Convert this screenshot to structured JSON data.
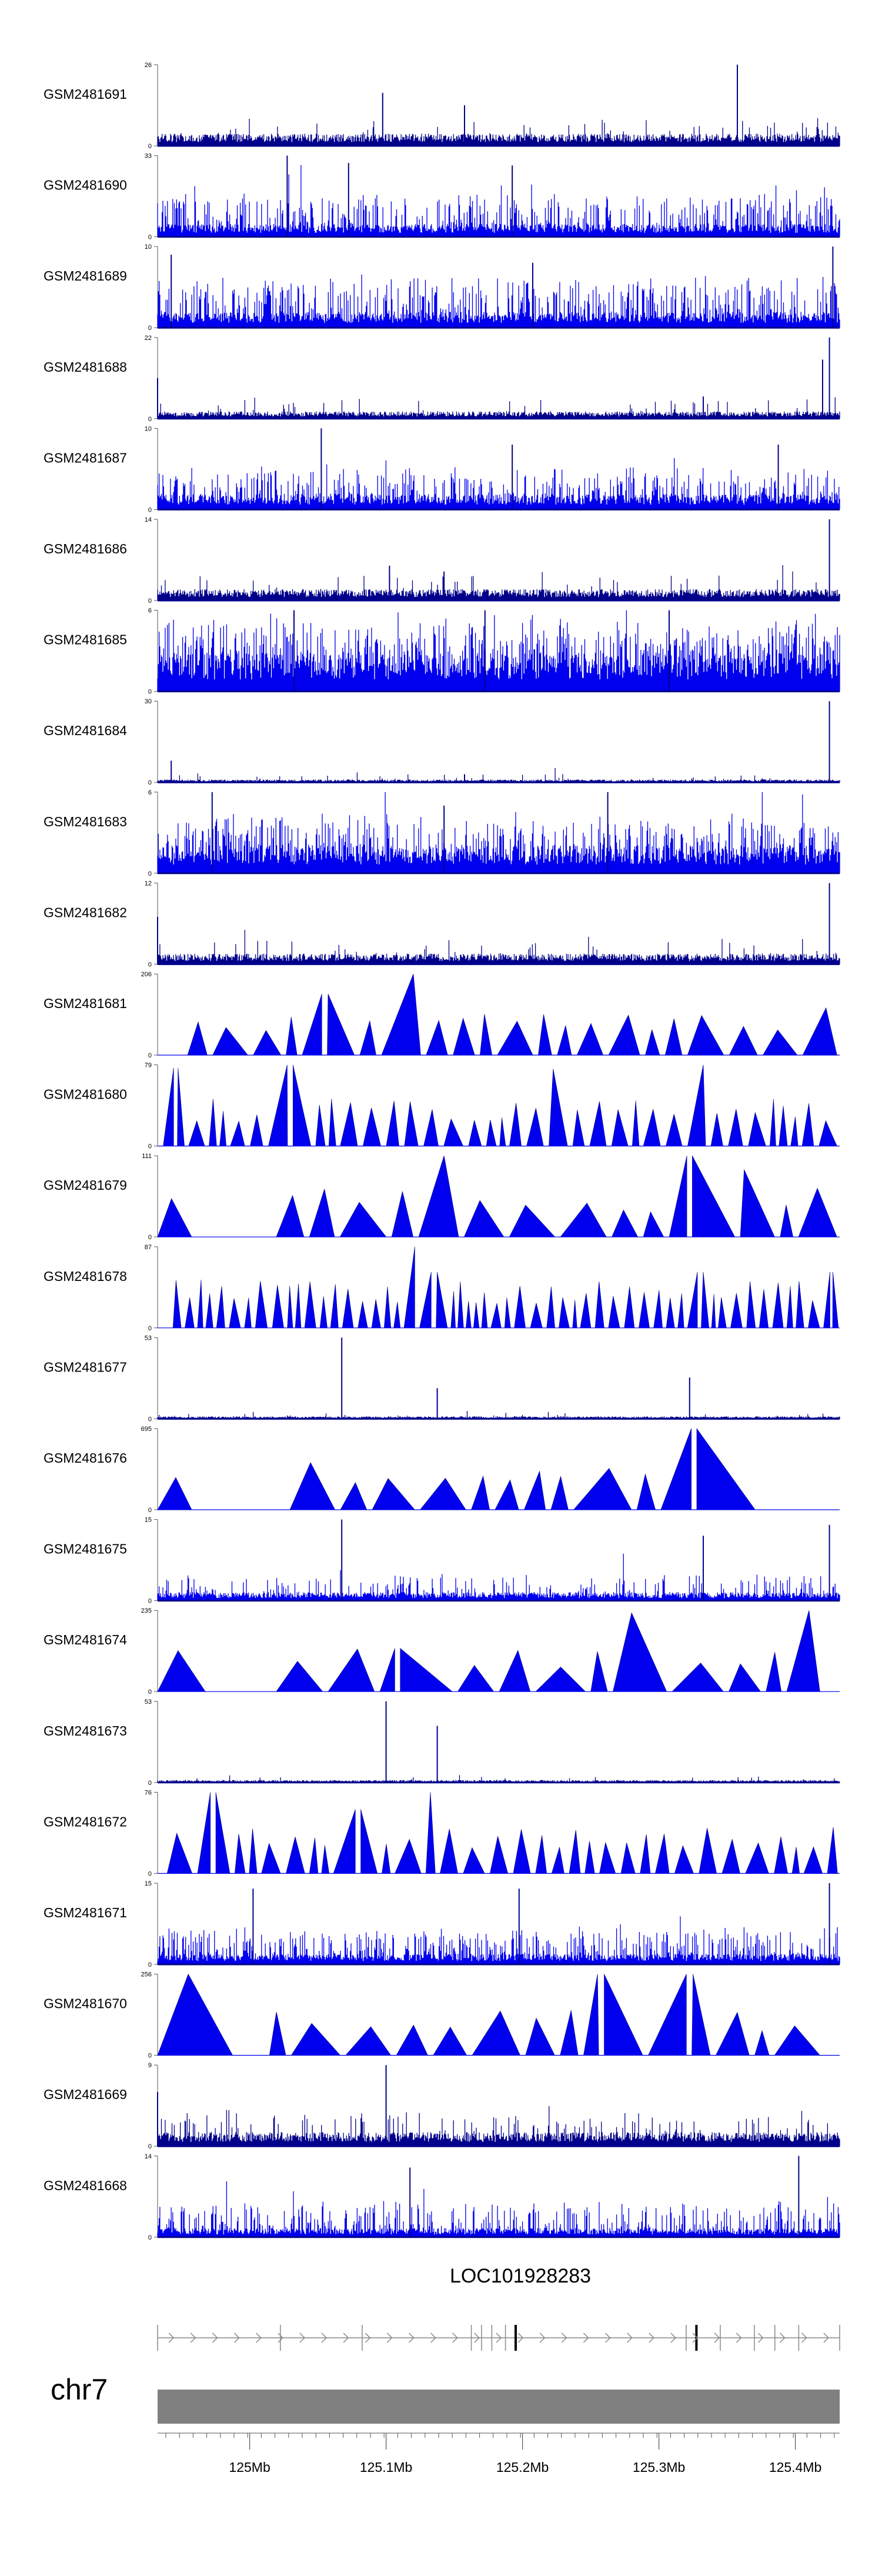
{
  "chart_data": {
    "type": "area",
    "title": "",
    "tracks": [
      {
        "name": "GSM2481691",
        "ylim": [
          0,
          26
        ],
        "style": "dense",
        "baseline": 3,
        "noise": 5,
        "spike_rate": 0.06,
        "peaks": [
          {
            "x": 0.85,
            "y": 26
          },
          {
            "x": 0.33,
            "y": 17
          },
          {
            "x": 0.45,
            "y": 13
          }
        ]
      },
      {
        "name": "GSM2481690",
        "ylim": [
          0,
          33
        ],
        "style": "comb",
        "baseline": 4,
        "noise": 13,
        "spike_rate": 0.35,
        "peaks": [
          {
            "x": 0.19,
            "y": 33
          },
          {
            "x": 0.28,
            "y": 30
          },
          {
            "x": 0.52,
            "y": 29
          }
        ]
      },
      {
        "name": "GSM2481689",
        "ylim": [
          0,
          10
        ],
        "style": "comb",
        "baseline": 1.5,
        "noise": 4.5,
        "spike_rate": 0.4,
        "peaks": [
          {
            "x": 0.99,
            "y": 10
          },
          {
            "x": 0.02,
            "y": 9
          },
          {
            "x": 0.55,
            "y": 8
          }
        ]
      },
      {
        "name": "GSM2481688",
        "ylim": [
          0,
          22
        ],
        "style": "dense",
        "baseline": 1.5,
        "noise": 3.5,
        "spike_rate": 0.05,
        "peaks": [
          {
            "x": 0.985,
            "y": 22
          },
          {
            "x": 0.975,
            "y": 16
          },
          {
            "x": 0.0,
            "y": 11
          },
          {
            "x": 0.8,
            "y": 6
          }
        ]
      },
      {
        "name": "GSM2481687",
        "ylim": [
          0,
          10
        ],
        "style": "comb",
        "baseline": 1.5,
        "noise": 3.5,
        "spike_rate": 0.35,
        "peaks": [
          {
            "x": 0.24,
            "y": 10
          },
          {
            "x": 0.52,
            "y": 8
          },
          {
            "x": 0.91,
            "y": 8
          }
        ]
      },
      {
        "name": "GSM2481686",
        "ylim": [
          0,
          14
        ],
        "style": "dense",
        "baseline": 1.5,
        "noise": 3,
        "spike_rate": 0.05,
        "peaks": [
          {
            "x": 0.985,
            "y": 14
          },
          {
            "x": 0.34,
            "y": 6
          },
          {
            "x": 0.42,
            "y": 5
          }
        ]
      },
      {
        "name": "GSM2481685",
        "ylim": [
          0,
          6
        ],
        "style": "comb",
        "baseline": 2.2,
        "noise": 2.8,
        "spike_rate": 0.5,
        "peaks": [
          {
            "x": 0.2,
            "y": 6
          },
          {
            "x": 0.48,
            "y": 6
          },
          {
            "x": 0.75,
            "y": 6
          }
        ]
      },
      {
        "name": "GSM2481684",
        "ylim": [
          0,
          30
        ],
        "style": "dense",
        "baseline": 0.8,
        "noise": 2.5,
        "spike_rate": 0.03,
        "peaks": [
          {
            "x": 0.985,
            "y": 30
          },
          {
            "x": 0.02,
            "y": 8
          },
          {
            "x": 0.45,
            "y": 3
          }
        ]
      },
      {
        "name": "GSM2481683",
        "ylim": [
          0,
          6
        ],
        "style": "comb",
        "baseline": 1.6,
        "noise": 2.5,
        "spike_rate": 0.4,
        "peaks": [
          {
            "x": 0.08,
            "y": 6
          },
          {
            "x": 0.66,
            "y": 6
          },
          {
            "x": 0.42,
            "y": 5
          }
        ]
      },
      {
        "name": "GSM2481682",
        "ylim": [
          0,
          12
        ],
        "style": "dense",
        "baseline": 1.2,
        "noise": 2.5,
        "spike_rate": 0.05,
        "peaks": [
          {
            "x": 0.985,
            "y": 12
          },
          {
            "x": 0.0,
            "y": 7
          }
        ]
      },
      {
        "name": "GSM2481681",
        "ylim": [
          0,
          206
        ],
        "style": "triangles",
        "count": 22,
        "gap": [
          0.0,
          0.04
        ],
        "peaks": [
          {
            "x": 0.375,
            "y": 206
          },
          {
            "x": 0.25,
            "y": 155
          },
          {
            "x": 0.98,
            "y": 120
          }
        ]
      },
      {
        "name": "GSM2481680",
        "ylim": [
          0,
          79
        ],
        "style": "triangles",
        "count": 38,
        "gap": [
          0.0,
          0.005
        ],
        "peaks": [
          {
            "x": 0.19,
            "y": 79
          },
          {
            "x": 0.03,
            "y": 76
          },
          {
            "x": 0.58,
            "y": 75
          },
          {
            "x": 0.8,
            "y": 79
          }
        ]
      },
      {
        "name": "GSM2481679",
        "ylim": [
          0,
          111
        ],
        "style": "triangles",
        "count": 15,
        "gap": [
          0.05,
          0.17
        ],
        "peaks": [
          {
            "x": 0.42,
            "y": 111
          },
          {
            "x": 0.78,
            "y": 111
          },
          {
            "x": 0.86,
            "y": 92
          }
        ]
      },
      {
        "name": "GSM2481678",
        "ylim": [
          0,
          87
        ],
        "style": "triangles",
        "count": 55,
        "gap": [
          0.0,
          0.02
        ],
        "peaks": [
          {
            "x": 0.385,
            "y": 87
          },
          {
            "x": 0.41,
            "y": 60
          },
          {
            "x": 0.8,
            "y": 60
          },
          {
            "x": 0.99,
            "y": 60
          }
        ]
      },
      {
        "name": "GSM2481677",
        "ylim": [
          0,
          53
        ],
        "style": "dense",
        "baseline": 1.2,
        "noise": 3,
        "spike_rate": 0.03,
        "peaks": [
          {
            "x": 0.27,
            "y": 53
          },
          {
            "x": 0.78,
            "y": 27
          },
          {
            "x": 0.41,
            "y": 20
          }
        ]
      },
      {
        "name": "GSM2481676",
        "ylim": [
          0,
          695
        ],
        "style": "triangles",
        "count": 12,
        "gap": [
          0.05,
          0.19
        ],
        "end": 0.88,
        "peaks": [
          {
            "x": 0.79,
            "y": 695
          },
          {
            "x": 0.56,
            "y": 330
          }
        ]
      },
      {
        "name": "GSM2481675",
        "ylim": [
          0,
          15
        ],
        "style": "comb",
        "baseline": 1.2,
        "noise": 3.5,
        "spike_rate": 0.2,
        "peaks": [
          {
            "x": 0.27,
            "y": 15
          },
          {
            "x": 0.985,
            "y": 14
          },
          {
            "x": 0.8,
            "y": 12
          }
        ]
      },
      {
        "name": "GSM2481674",
        "ylim": [
          0,
          235
        ],
        "style": "triangles",
        "count": 13,
        "gap": [
          0.07,
          0.17
        ],
        "end": 0.975,
        "peaks": [
          {
            "x": 0.955,
            "y": 235
          },
          {
            "x": 0.695,
            "y": 228
          },
          {
            "x": 0.35,
            "y": 125
          }
        ]
      },
      {
        "name": "GSM2481673",
        "ylim": [
          0,
          53
        ],
        "style": "dense",
        "baseline": 1.2,
        "noise": 3,
        "spike_rate": 0.03,
        "peaks": [
          {
            "x": 0.335,
            "y": 53
          },
          {
            "x": 0.41,
            "y": 37
          }
        ]
      },
      {
        "name": "GSM2481672",
        "ylim": [
          0,
          76
        ],
        "style": "triangles",
        "count": 34,
        "gap": [
          0.0,
          0.01
        ],
        "peaks": [
          {
            "x": 0.08,
            "y": 76
          },
          {
            "x": 0.4,
            "y": 76
          },
          {
            "x": 0.29,
            "y": 60
          }
        ]
      },
      {
        "name": "GSM2481671",
        "ylim": [
          0,
          15
        ],
        "style": "comb",
        "baseline": 1.5,
        "noise": 5,
        "spike_rate": 0.4,
        "peaks": [
          {
            "x": 0.985,
            "y": 15
          },
          {
            "x": 0.14,
            "y": 14
          },
          {
            "x": 0.53,
            "y": 14
          }
        ]
      },
      {
        "name": "GSM2481670",
        "ylim": [
          0,
          256
        ],
        "style": "triangles",
        "count": 15,
        "gap": [
          0.11,
          0.16
        ],
        "end": 0.975,
        "peaks": [
          {
            "x": 0.045,
            "y": 256
          },
          {
            "x": 0.645,
            "y": 256
          },
          {
            "x": 0.785,
            "y": 256
          }
        ]
      },
      {
        "name": "GSM2481669",
        "ylim": [
          0,
          9
        ],
        "style": "dense",
        "baseline": 1.2,
        "noise": 2.5,
        "spike_rate": 0.12,
        "peaks": [
          {
            "x": 0.335,
            "y": 9
          },
          {
            "x": 0.0,
            "y": 6
          }
        ]
      },
      {
        "name": "GSM2481668",
        "ylim": [
          0,
          14
        ],
        "style": "comb",
        "baseline": 1.2,
        "noise": 5,
        "spike_rate": 0.3,
        "peaks": [
          {
            "x": 0.94,
            "y": 14
          },
          {
            "x": 0.37,
            "y": 12
          }
        ]
      }
    ],
    "gene": {
      "name": "LOC101928283",
      "exon_ticks": [
        0.0,
        0.18,
        0.3,
        0.46,
        0.475,
        0.49,
        0.51,
        0.525,
        0.775,
        0.79,
        0.825,
        0.875,
        0.905,
        0.94,
        1.0
      ],
      "bold_ticks": [
        0.525,
        0.79
      ]
    },
    "chromosome": "chr7",
    "x_axis": {
      "ticks": [
        {
          "label": "125Mb",
          "x": 0.135
        },
        {
          "label": "125.1Mb",
          "x": 0.335
        },
        {
          "label": "125.2Mb",
          "x": 0.535
        },
        {
          "label": "125.3Mb",
          "x": 0.735
        },
        {
          "label": "125.4Mb",
          "x": 0.935
        }
      ]
    },
    "colors": {
      "signal": "#0000ee",
      "signal_dark": "#00008b",
      "axis": "#555555",
      "chromosome_fill": "#808080",
      "gene_line": "#888888"
    }
  }
}
